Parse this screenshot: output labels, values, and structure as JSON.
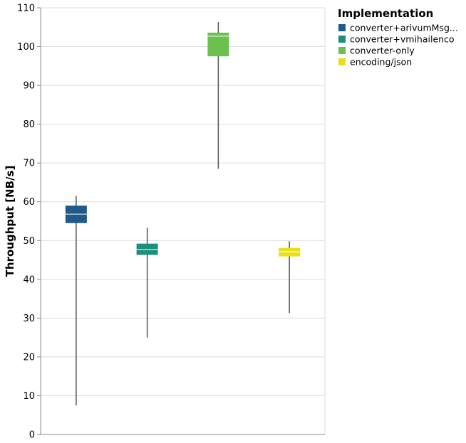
{
  "chart_data": {
    "type": "boxplot",
    "title": "",
    "xlabel": "",
    "ylabel": "Throughput [NB/s]",
    "ylim": [
      0,
      110
    ],
    "yticks": [
      0,
      10,
      20,
      30,
      40,
      50,
      60,
      70,
      80,
      90,
      100,
      110
    ],
    "grid": true,
    "legend": {
      "title": "Implementation",
      "position": "right"
    },
    "series": [
      {
        "name": "converter+arivumMsg...",
        "color": "#1f5a8a",
        "whisker_low": 7.5,
        "q1": 54.5,
        "median": 56.8,
        "q3": 59.0,
        "whisker_high": 61.5
      },
      {
        "name": "converter+vmihailenco",
        "color": "#1e8f7e",
        "whisker_low": 25.0,
        "q1": 46.3,
        "median": 47.7,
        "q3": 49.2,
        "whisker_high": 53.3
      },
      {
        "name": "converter-only",
        "color": "#6cc050",
        "whisker_low": 68.5,
        "q1": 97.5,
        "median": 102.7,
        "q3": 103.6,
        "whisker_high": 106.3
      },
      {
        "name": "encoding/json",
        "color": "#e8e11a",
        "whisker_low": 31.3,
        "q1": 45.9,
        "median": 47.1,
        "q3": 48.1,
        "whisker_high": 49.8
      }
    ]
  }
}
